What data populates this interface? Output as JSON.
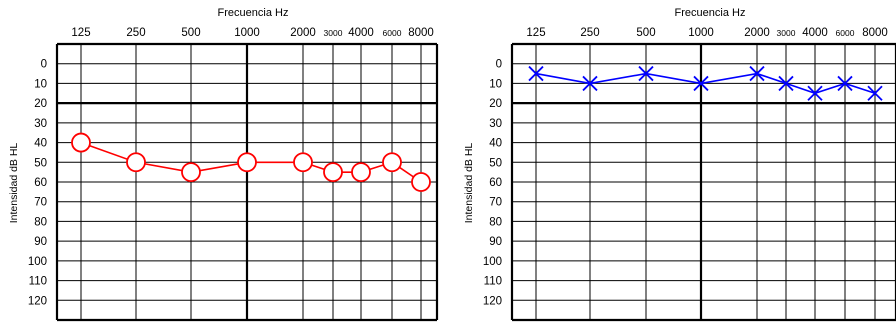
{
  "chart_data": [
    {
      "type": "line",
      "title": "",
      "xlabel": "Frecuencia Hz",
      "ylabel": "Intensidad  dB HL",
      "categories": [
        "125",
        "250",
        "500",
        "1000",
        "2000",
        "3000",
        "4000",
        "6000",
        "8000"
      ],
      "x": [
        125,
        250,
        500,
        1000,
        2000,
        3000,
        4000,
        6000,
        8000
      ],
      "y_ticks": [
        "0",
        "10",
        "20",
        "30",
        "40",
        "50",
        "60",
        "70",
        "80",
        "90",
        "100",
        "110",
        "120"
      ],
      "ylim": [
        -10,
        130
      ],
      "y_inverted": true,
      "grid": true,
      "series": [
        {
          "marker": "circle",
          "color": "#ff0000",
          "values": [
            40,
            50,
            55,
            50,
            50,
            55,
            55,
            50,
            60
          ]
        }
      ]
    },
    {
      "type": "line",
      "title": "",
      "xlabel": "Frecuencia Hz",
      "ylabel": "Intensidad  dB HL",
      "categories": [
        "125",
        "250",
        "500",
        "1000",
        "2000",
        "3000",
        "4000",
        "6000",
        "8000"
      ],
      "x": [
        125,
        250,
        500,
        1000,
        2000,
        3000,
        4000,
        6000,
        8000
      ],
      "y_ticks": [
        "0",
        "10",
        "20",
        "30",
        "40",
        "50",
        "60",
        "70",
        "80",
        "90",
        "100",
        "110",
        "120"
      ],
      "ylim": [
        -10,
        130
      ],
      "y_inverted": true,
      "grid": true,
      "series": [
        {
          "marker": "x",
          "color": "#0000ff",
          "values": [
            5,
            10,
            5,
            10,
            5,
            10,
            15,
            10,
            15
          ]
        }
      ]
    }
  ]
}
